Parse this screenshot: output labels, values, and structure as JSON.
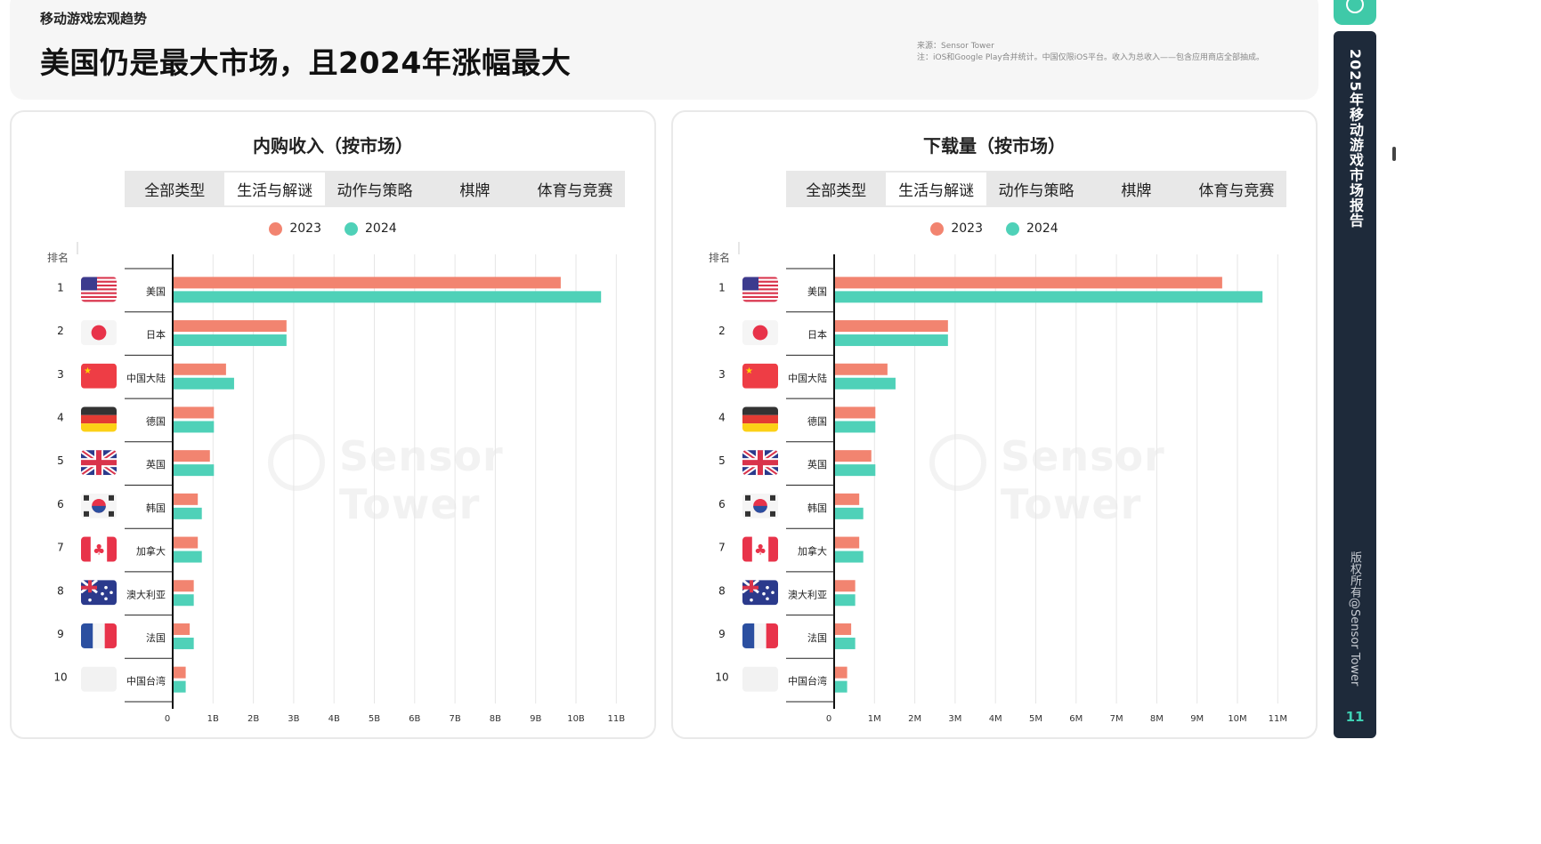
{
  "header": {
    "section": "移动游戏宏观趋势",
    "title": "美国仍是最大市场，且2024年涨幅最大",
    "source_line1": "来源：Sensor Tower",
    "source_line2": "注：iOS和Google Play合并统计。中国仅限iOS平台。收入为总收入——包含应用商店全部抽成。"
  },
  "sidebar": {
    "title": "2025年移动游戏市场报告",
    "copyright": "版权所有@Sensor Tower",
    "page": "11"
  },
  "watermark": "Sensor Tower",
  "rank_label": "排名",
  "tabs": [
    "全部类型",
    "生活与解谜",
    "动作与策略",
    "棋牌",
    "体育与竞赛"
  ],
  "active_tab": 1,
  "legend": [
    {
      "label": "2023",
      "color": "#f28470"
    },
    {
      "label": "2024",
      "color": "#4fd1b8"
    }
  ],
  "countries": [
    {
      "rank": "1",
      "name": "美国",
      "flag": "us-flag"
    },
    {
      "rank": "2",
      "name": "日本",
      "flag": "japan-flag"
    },
    {
      "rank": "3",
      "name": "中国大陆",
      "flag": "china-flag"
    },
    {
      "rank": "4",
      "name": "德国",
      "flag": "germany-flag"
    },
    {
      "rank": "5",
      "name": "英国",
      "flag": "uk-flag"
    },
    {
      "rank": "6",
      "name": "韩国",
      "flag": "korea-flag"
    },
    {
      "rank": "7",
      "name": "加拿大",
      "flag": "canada-flag"
    },
    {
      "rank": "8",
      "name": "澳大利亚",
      "flag": "australia-flag"
    },
    {
      "rank": "9",
      "name": "法国",
      "flag": "france-flag"
    },
    {
      "rank": "10",
      "name": "中国台湾",
      "flag": ""
    }
  ],
  "colors": {
    "c2023": "#f28470",
    "c2024": "#4fd1b8"
  },
  "chart_data": [
    {
      "type": "bar",
      "orientation": "horizontal",
      "title": "内购收入（按市场）",
      "categories": [
        "美国",
        "日本",
        "中国大陆",
        "德国",
        "英国",
        "韩国",
        "加拿大",
        "澳大利亚",
        "法国",
        "中国台湾"
      ],
      "series": [
        {
          "name": "2023",
          "values": [
            9.6,
            2.8,
            1.3,
            1.0,
            0.9,
            0.6,
            0.6,
            0.5,
            0.4,
            0.3
          ]
        },
        {
          "name": "2024",
          "values": [
            10.6,
            2.8,
            1.5,
            1.0,
            1.0,
            0.7,
            0.7,
            0.5,
            0.5,
            0.3
          ]
        }
      ],
      "xlim": [
        0,
        11
      ],
      "xticks": [
        "0",
        "1B",
        "2B",
        "3B",
        "4B",
        "5B",
        "6B",
        "7B",
        "8B",
        "9B",
        "10B",
        "11B"
      ],
      "xlabel": "",
      "ylabel": "排名"
    },
    {
      "type": "bar",
      "orientation": "horizontal",
      "title": "下载量（按市场）",
      "categories": [
        "美国",
        "日本",
        "中国大陆",
        "德国",
        "英国",
        "韩国",
        "加拿大",
        "澳大利亚",
        "法国",
        "中国台湾"
      ],
      "series": [
        {
          "name": "2023",
          "values": [
            9.6,
            2.8,
            1.3,
            1.0,
            0.9,
            0.6,
            0.6,
            0.5,
            0.4,
            0.3
          ]
        },
        {
          "name": "2024",
          "values": [
            10.6,
            2.8,
            1.5,
            1.0,
            1.0,
            0.7,
            0.7,
            0.5,
            0.5,
            0.3
          ]
        }
      ],
      "xlim": [
        0,
        11
      ],
      "xticks": [
        "0",
        "1M",
        "2M",
        "3M",
        "4M",
        "5M",
        "6M",
        "7M",
        "8M",
        "9M",
        "10M",
        "11M"
      ],
      "xlabel": "",
      "ylabel": "排名"
    }
  ]
}
